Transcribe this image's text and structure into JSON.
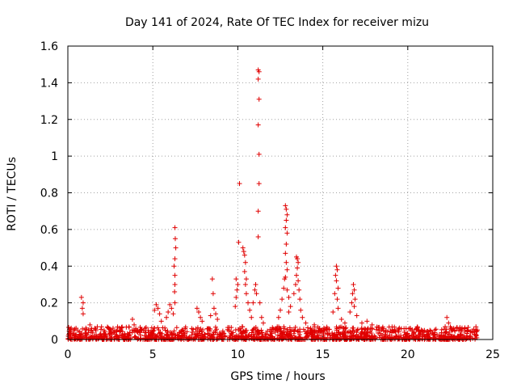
{
  "chart_data": {
    "type": "scatter",
    "title": "Day 141 of 2024, Rate Of TEC Index for receiver mizu",
    "xlabel": "GPS time / hours",
    "ylabel": "ROTI / TECUs",
    "xlim": [
      0,
      25
    ],
    "ylim": [
      0,
      1.6
    ],
    "x_ticks": [
      "0",
      "5",
      "10",
      "15",
      "20",
      "25"
    ],
    "y_ticks": [
      "0",
      "0.2",
      "0.4",
      "0.6",
      "0.8",
      "1",
      "1.2",
      "1.4",
      "1.6"
    ],
    "grid": true,
    "marker": "+",
    "color": "#e00000",
    "series": [
      {
        "name": "",
        "points": [
          [
            0.8,
            0.23
          ],
          [
            0.9,
            0.2
          ],
          [
            0.85,
            0.17
          ],
          [
            0.9,
            0.14
          ],
          [
            1.3,
            0.08
          ],
          [
            1.4,
            0.06
          ],
          [
            3.8,
            0.11
          ],
          [
            3.9,
            0.08
          ],
          [
            4.0,
            0.06
          ],
          [
            5.1,
            0.16
          ],
          [
            5.2,
            0.19
          ],
          [
            5.3,
            0.17
          ],
          [
            5.4,
            0.14
          ],
          [
            5.5,
            0.1
          ],
          [
            5.8,
            0.12
          ],
          [
            5.9,
            0.15
          ],
          [
            6.0,
            0.19
          ],
          [
            6.1,
            0.17
          ],
          [
            6.2,
            0.14
          ],
          [
            6.3,
            0.61
          ],
          [
            6.32,
            0.55
          ],
          [
            6.35,
            0.5
          ],
          [
            6.3,
            0.44
          ],
          [
            6.25,
            0.4
          ],
          [
            6.3,
            0.35
          ],
          [
            6.3,
            0.3
          ],
          [
            6.28,
            0.26
          ],
          [
            6.3,
            0.2
          ],
          [
            7.6,
            0.17
          ],
          [
            7.7,
            0.15
          ],
          [
            7.8,
            0.12
          ],
          [
            7.9,
            0.1
          ],
          [
            8.4,
            0.13
          ],
          [
            8.5,
            0.33
          ],
          [
            8.55,
            0.25
          ],
          [
            8.6,
            0.17
          ],
          [
            8.7,
            0.14
          ],
          [
            8.8,
            0.11
          ],
          [
            9.9,
            0.33
          ],
          [
            10.0,
            0.3
          ],
          [
            10.05,
            0.53
          ],
          [
            10.1,
            0.85
          ],
          [
            9.95,
            0.27
          ],
          [
            9.9,
            0.23
          ],
          [
            9.85,
            0.18
          ],
          [
            10.3,
            0.5
          ],
          [
            10.35,
            0.48
          ],
          [
            10.4,
            0.46
          ],
          [
            10.45,
            0.42
          ],
          [
            10.4,
            0.37
          ],
          [
            10.5,
            0.33
          ],
          [
            10.45,
            0.3
          ],
          [
            10.5,
            0.25
          ],
          [
            10.6,
            0.2
          ],
          [
            10.7,
            0.16
          ],
          [
            10.8,
            0.12
          ],
          [
            10.9,
            0.2
          ],
          [
            11.0,
            0.27
          ],
          [
            11.05,
            0.3
          ],
          [
            11.1,
            0.25
          ],
          [
            11.2,
            1.47
          ],
          [
            11.25,
            1.46
          ],
          [
            11.2,
            1.42
          ],
          [
            11.25,
            1.31
          ],
          [
            11.2,
            1.17
          ],
          [
            11.25,
            1.01
          ],
          [
            11.25,
            0.85
          ],
          [
            11.2,
            0.7
          ],
          [
            11.2,
            0.56
          ],
          [
            11.3,
            0.2
          ],
          [
            11.4,
            0.12
          ],
          [
            11.5,
            0.09
          ],
          [
            12.4,
            0.12
          ],
          [
            12.5,
            0.16
          ],
          [
            12.6,
            0.22
          ],
          [
            12.7,
            0.28
          ],
          [
            12.75,
            0.33
          ],
          [
            12.8,
            0.73
          ],
          [
            12.85,
            0.71
          ],
          [
            12.9,
            0.68
          ],
          [
            12.85,
            0.65
          ],
          [
            12.8,
            0.61
          ],
          [
            12.9,
            0.58
          ],
          [
            12.85,
            0.52
          ],
          [
            12.8,
            0.47
          ],
          [
            12.85,
            0.42
          ],
          [
            12.9,
            0.38
          ],
          [
            12.8,
            0.34
          ],
          [
            12.9,
            0.27
          ],
          [
            13.0,
            0.23
          ],
          [
            13.1,
            0.18
          ],
          [
            13.0,
            0.15
          ],
          [
            13.3,
            0.25
          ],
          [
            13.4,
            0.3
          ],
          [
            13.45,
            0.45
          ],
          [
            13.5,
            0.44
          ],
          [
            13.55,
            0.42
          ],
          [
            13.5,
            0.39
          ],
          [
            13.45,
            0.35
          ],
          [
            13.55,
            0.32
          ],
          [
            13.6,
            0.27
          ],
          [
            13.65,
            0.22
          ],
          [
            13.7,
            0.16
          ],
          [
            13.8,
            0.12
          ],
          [
            14.0,
            0.09
          ],
          [
            14.5,
            0.08
          ],
          [
            14.8,
            0.06
          ],
          [
            15.1,
            0.05
          ],
          [
            15.6,
            0.15
          ],
          [
            15.7,
            0.25
          ],
          [
            15.75,
            0.35
          ],
          [
            15.8,
            0.4
          ],
          [
            15.85,
            0.38
          ],
          [
            15.8,
            0.32
          ],
          [
            15.9,
            0.28
          ],
          [
            15.85,
            0.22
          ],
          [
            15.9,
            0.17
          ],
          [
            16.1,
            0.11
          ],
          [
            16.3,
            0.09
          ],
          [
            16.6,
            0.15
          ],
          [
            16.7,
            0.2
          ],
          [
            16.75,
            0.25
          ],
          [
            16.8,
            0.3
          ],
          [
            16.85,
            0.27
          ],
          [
            16.9,
            0.22
          ],
          [
            16.85,
            0.18
          ],
          [
            17.0,
            0.13
          ],
          [
            17.3,
            0.09
          ],
          [
            17.6,
            0.1
          ],
          [
            17.9,
            0.08
          ],
          [
            18.5,
            0.06
          ],
          [
            19.3,
            0.05
          ],
          [
            19.9,
            0.06
          ],
          [
            20.5,
            0.06
          ],
          [
            21.3,
            0.05
          ],
          [
            22.2,
            0.07
          ],
          [
            22.3,
            0.12
          ],
          [
            22.4,
            0.09
          ],
          [
            22.6,
            0.05
          ],
          [
            23.0,
            0.05
          ],
          [
            23.5,
            0.05
          ],
          [
            23.9,
            0.04
          ]
        ]
      }
    ]
  }
}
